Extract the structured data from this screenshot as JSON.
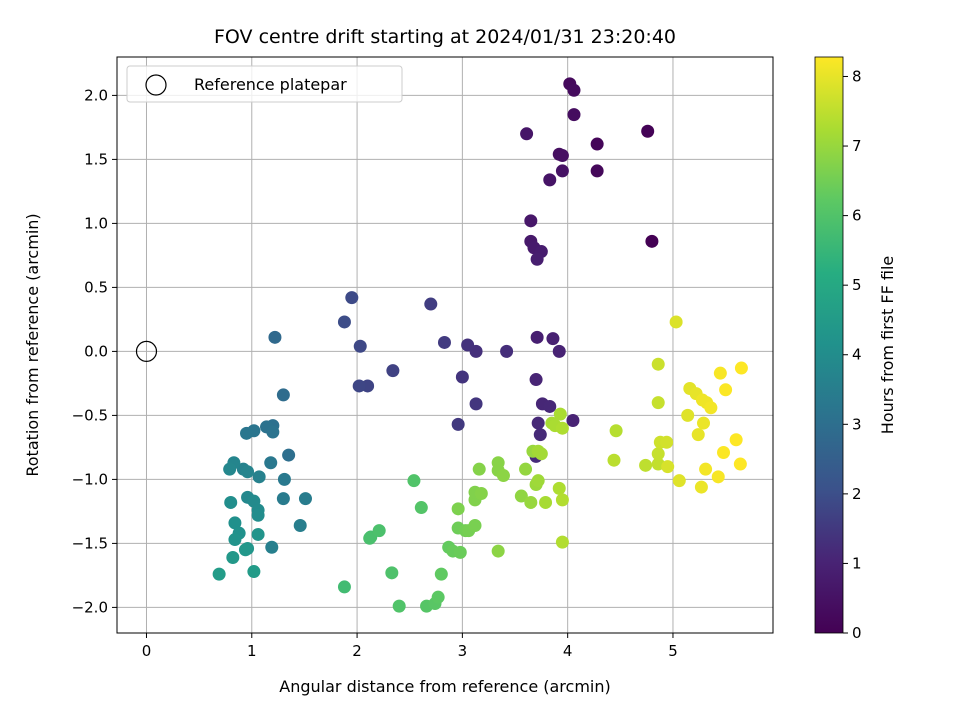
{
  "chart_data": {
    "type": "scatter",
    "title": "FOV centre drift starting at 2024/01/31 23:20:40",
    "xlabel": "Angular distance from reference (arcmin)",
    "ylabel": "Rotation from reference (arcmin)",
    "xlim": [
      -0.28,
      5.95
    ],
    "ylim": [
      -2.2,
      2.3
    ],
    "xticks": [
      0,
      1,
      2,
      3,
      4,
      5
    ],
    "yticks": [
      -2.0,
      -1.5,
      -1.0,
      -0.5,
      0.0,
      0.5,
      1.0,
      1.5,
      2.0
    ],
    "xtick_labels": [
      "0",
      "1",
      "2",
      "3",
      "4",
      "5"
    ],
    "ytick_labels": [
      "−2.0",
      "−1.5",
      "−1.0",
      "−0.5",
      "0.0",
      "0.5",
      "1.0",
      "1.5",
      "2.0"
    ],
    "grid": true,
    "legend": {
      "placement": "top-left",
      "entries": [
        "Reference platepar"
      ]
    },
    "reference": {
      "x": 0,
      "y": 0,
      "label": "Reference platepar"
    },
    "colorbar": {
      "label": "Hours from first FF file",
      "range": [
        0,
        8.28
      ],
      "ticks": [
        0,
        1,
        2,
        3,
        4,
        5,
        6,
        7,
        8
      ],
      "tick_labels": [
        "0",
        "1",
        "2",
        "3",
        "4",
        "5",
        "6",
        "7",
        "8"
      ],
      "colormap": "viridis"
    },
    "points": [
      [
        4.8,
        0.86,
        0.0
      ],
      [
        4.76,
        1.72,
        0.05
      ],
      [
        4.28,
        1.62,
        0.15
      ],
      [
        4.28,
        1.41,
        0.2
      ],
      [
        4.02,
        2.09,
        0.25
      ],
      [
        4.06,
        2.04,
        0.3
      ],
      [
        4.06,
        1.85,
        0.35
      ],
      [
        3.92,
        1.54,
        0.4
      ],
      [
        3.95,
        1.53,
        0.45
      ],
      [
        3.95,
        1.41,
        0.5
      ],
      [
        3.83,
        1.34,
        0.55
      ],
      [
        3.61,
        1.7,
        0.6
      ],
      [
        3.65,
        1.02,
        0.65
      ],
      [
        3.65,
        0.86,
        0.7
      ],
      [
        3.68,
        0.81,
        0.75
      ],
      [
        3.75,
        0.78,
        0.8
      ],
      [
        3.71,
        0.72,
        0.85
      ],
      [
        3.71,
        0.11,
        0.9
      ],
      [
        3.86,
        0.1,
        0.95
      ],
      [
        3.92,
        0.0,
        1.0
      ],
      [
        4.05,
        -0.54,
        1.0
      ],
      [
        3.7,
        -0.22,
        1.05
      ],
      [
        3.76,
        -0.41,
        1.1
      ],
      [
        3.83,
        -0.43,
        1.12
      ],
      [
        3.72,
        -0.56,
        1.15
      ],
      [
        3.74,
        -0.65,
        1.18
      ],
      [
        3.7,
        -0.82,
        1.2
      ],
      [
        3.42,
        0.0,
        1.25
      ],
      [
        3.13,
        0.0,
        1.3
      ],
      [
        3.05,
        0.05,
        1.35
      ],
      [
        3.0,
        -0.2,
        1.4
      ],
      [
        3.13,
        -0.41,
        1.45
      ],
      [
        2.96,
        -0.57,
        1.5
      ],
      [
        2.83,
        0.07,
        1.55
      ],
      [
        2.7,
        0.37,
        1.6
      ],
      [
        2.34,
        -0.15,
        1.7
      ],
      [
        2.1,
        -0.27,
        1.75
      ],
      [
        2.02,
        -0.27,
        1.8
      ],
      [
        2.03,
        0.04,
        1.85
      ],
      [
        1.95,
        0.42,
        1.9
      ],
      [
        1.88,
        0.23,
        1.95
      ],
      [
        1.22,
        0.11,
        2.8
      ],
      [
        1.3,
        -0.34,
        2.9
      ],
      [
        1.35,
        -0.81,
        3.0
      ],
      [
        1.2,
        -0.58,
        3.05
      ],
      [
        1.14,
        -0.59,
        3.1
      ],
      [
        1.2,
        -0.63,
        3.15
      ],
      [
        1.02,
        -0.62,
        3.2
      ],
      [
        0.95,
        -0.64,
        3.25
      ],
      [
        1.18,
        -0.87,
        3.3
      ],
      [
        1.31,
        -1.0,
        3.35
      ],
      [
        1.3,
        -1.15,
        3.4
      ],
      [
        1.51,
        -1.15,
        3.45
      ],
      [
        1.46,
        -1.36,
        3.5
      ],
      [
        1.19,
        -1.53,
        3.55
      ],
      [
        1.07,
        -0.98,
        3.6
      ],
      [
        0.92,
        -0.92,
        3.65
      ],
      [
        0.96,
        -0.94,
        3.7
      ],
      [
        0.83,
        -0.87,
        3.75
      ],
      [
        0.79,
        -0.92,
        3.8
      ],
      [
        0.96,
        -1.14,
        3.85
      ],
      [
        1.02,
        -1.17,
        3.9
      ],
      [
        1.06,
        -1.24,
        3.95
      ],
      [
        1.06,
        -1.28,
        4.0
      ],
      [
        0.8,
        -1.18,
        4.05
      ],
      [
        0.84,
        -1.34,
        4.1
      ],
      [
        0.88,
        -1.42,
        4.15
      ],
      [
        0.84,
        -1.47,
        4.2
      ],
      [
        1.06,
        -1.43,
        4.25
      ],
      [
        0.96,
        -1.54,
        4.3
      ],
      [
        0.94,
        -1.55,
        4.35
      ],
      [
        0.82,
        -1.61,
        4.4
      ],
      [
        1.02,
        -1.72,
        4.5
      ],
      [
        0.69,
        -1.74,
        4.55
      ],
      [
        1.88,
        -1.84,
        5.7
      ],
      [
        2.13,
        -1.45,
        5.8
      ],
      [
        2.12,
        -1.46,
        5.85
      ],
      [
        2.21,
        -1.4,
        5.9
      ],
      [
        2.33,
        -1.73,
        5.95
      ],
      [
        2.4,
        -1.99,
        6.0
      ],
      [
        2.54,
        -1.01,
        6.0
      ],
      [
        2.61,
        -1.22,
        6.05
      ],
      [
        2.66,
        -1.99,
        6.1
      ],
      [
        2.74,
        -1.97,
        6.15
      ],
      [
        2.77,
        -1.92,
        6.2
      ],
      [
        2.8,
        -1.74,
        6.25
      ],
      [
        2.87,
        -1.53,
        6.3
      ],
      [
        2.91,
        -1.56,
        6.35
      ],
      [
        2.98,
        -1.57,
        6.4
      ],
      [
        2.96,
        -1.38,
        6.45
      ],
      [
        3.03,
        -1.4,
        6.5
      ],
      [
        3.06,
        -1.4,
        6.55
      ],
      [
        3.12,
        -1.36,
        6.6
      ],
      [
        2.96,
        -1.23,
        6.65
      ],
      [
        3.12,
        -1.16,
        6.7
      ],
      [
        3.12,
        -1.1,
        6.7
      ],
      [
        3.18,
        -1.11,
        6.75
      ],
      [
        3.16,
        -0.92,
        6.75
      ],
      [
        3.34,
        -0.87,
        6.8
      ],
      [
        3.34,
        -0.93,
        6.8
      ],
      [
        3.39,
        -0.97,
        6.85
      ],
      [
        3.34,
        -1.56,
        6.85
      ],
      [
        3.56,
        -1.13,
        6.9
      ],
      [
        3.6,
        -0.92,
        6.95
      ],
      [
        3.65,
        -1.18,
        7.0
      ],
      [
        3.67,
        -0.78,
        7.0
      ],
      [
        3.7,
        -1.04,
        7.05
      ],
      [
        3.72,
        -1.01,
        7.1
      ],
      [
        3.72,
        -0.78,
        7.15
      ],
      [
        3.75,
        -0.8,
        7.15
      ],
      [
        3.79,
        -1.18,
        7.2
      ],
      [
        3.85,
        -0.56,
        7.2
      ],
      [
        3.88,
        -0.58,
        7.25
      ],
      [
        3.93,
        -0.49,
        7.25
      ],
      [
        3.95,
        -0.6,
        7.3
      ],
      [
        3.92,
        -1.07,
        7.3
      ],
      [
        3.95,
        -1.49,
        7.35
      ],
      [
        3.95,
        -1.16,
        7.35
      ],
      [
        4.46,
        -0.62,
        7.4
      ],
      [
        4.44,
        -0.85,
        7.45
      ],
      [
        4.74,
        -0.89,
        7.5
      ],
      [
        4.86,
        -0.88,
        7.55
      ],
      [
        4.86,
        -0.8,
        7.6
      ],
      [
        4.86,
        -0.4,
        7.6
      ],
      [
        4.86,
        -0.1,
        7.65
      ],
      [
        4.88,
        -0.71,
        7.7
      ],
      [
        4.94,
        -0.71,
        7.75
      ],
      [
        4.95,
        -0.9,
        7.8
      ],
      [
        5.03,
        0.23,
        7.85
      ],
      [
        5.06,
        -1.01,
        7.9
      ],
      [
        5.14,
        -0.5,
        7.9
      ],
      [
        5.16,
        -0.29,
        7.95
      ],
      [
        5.22,
        -0.33,
        8.0
      ],
      [
        5.24,
        -0.65,
        8.0
      ],
      [
        5.27,
        -1.06,
        8.05
      ],
      [
        5.29,
        -0.56,
        8.05
      ],
      [
        5.28,
        -0.38,
        8.1
      ],
      [
        5.32,
        -0.4,
        8.1
      ],
      [
        5.31,
        -0.92,
        8.15
      ],
      [
        5.36,
        -0.44,
        8.15
      ],
      [
        5.43,
        -0.98,
        8.2
      ],
      [
        5.45,
        -0.17,
        8.2
      ],
      [
        5.48,
        -0.79,
        8.25
      ],
      [
        5.5,
        -0.3,
        8.25
      ],
      [
        5.6,
        -0.69,
        8.28
      ],
      [
        5.64,
        -0.88,
        8.28
      ],
      [
        5.65,
        -0.13,
        8.28
      ]
    ]
  }
}
